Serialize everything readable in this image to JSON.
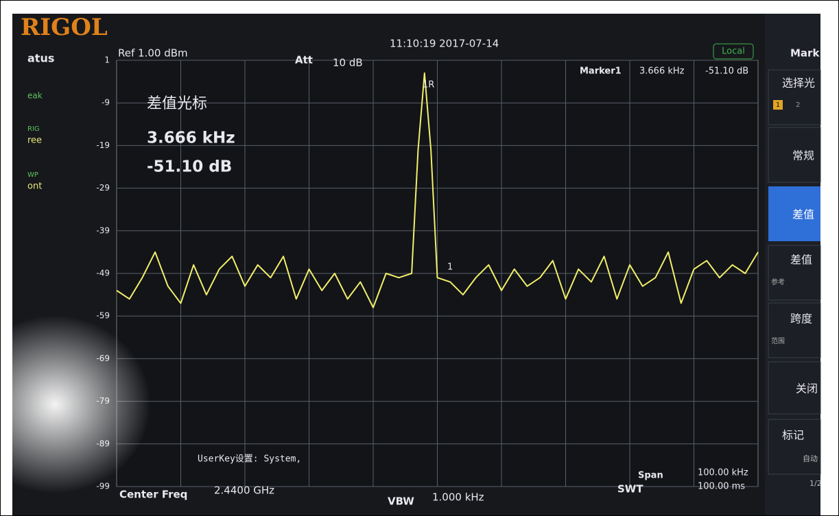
{
  "screen": {
    "logo": "RIGOL",
    "status_title": "atus",
    "status": [
      "eak",
      "RIG",
      "ree",
      "WP",
      "ont"
    ],
    "ref": "Ref 1.00 dBm",
    "att_label": "Att",
    "att_value": "10 dB",
    "timestamp": "11:10:19 2017-07-14",
    "local": "Local",
    "marker_label": "Marker1",
    "marker_freq": "3.666 kHz",
    "marker_level": "-51.10 dB",
    "marker_ref_tag": "1R",
    "marker_tag": "1",
    "overlay_title": "差值光标",
    "overlay_freq": "3.666 kHz",
    "overlay_level": "-51.10 dB",
    "userkey": "UserKey设置:  System,",
    "center_label": "Center Freq",
    "center_value": "2.4400 GHz",
    "vbw_label": "VBW",
    "vbw_value": "1.000 kHz",
    "span_label": "Span",
    "span_value": "100.00 kHz",
    "swt_label": "SWT",
    "swt_value": "100.00 ms",
    "menu": [
      "Mark",
      "选择光",
      "1",
      "2",
      "常规",
      "差值",
      "差值",
      "参考",
      "跨度",
      "范围",
      "关闭",
      "标记",
      "自动",
      "1/2"
    ]
  },
  "chart_data": {
    "type": "line",
    "x": [
      -50,
      -48,
      -46,
      -44,
      -42,
      -40,
      -38,
      -36,
      -34,
      -32,
      -30,
      -28,
      -26,
      -24,
      -22,
      -20,
      -18,
      -16,
      -14,
      -12,
      -10,
      -8,
      -6,
      -4,
      -3,
      -2,
      -1,
      0,
      2,
      4,
      6,
      8,
      10,
      12,
      14,
      16,
      18,
      20,
      22,
      24,
      26,
      28,
      30,
      32,
      34,
      36,
      38,
      40,
      42,
      44,
      46,
      48,
      50
    ],
    "series": [
      {
        "color": "#f2ee6a",
        "values": [
          -53,
          -55,
          -50,
          -44,
          -52,
          -56,
          -47,
          -54,
          -48,
          -45,
          -52,
          -47,
          -50,
          -45,
          -55,
          -48,
          -53,
          -49,
          -55,
          -51,
          -57,
          -49,
          -50,
          -49,
          -20,
          -2,
          -20,
          -50,
          -51,
          -54,
          -50,
          -47,
          -53,
          -48,
          -52,
          -50,
          -46,
          -55,
          -48,
          -51,
          -45,
          -55,
          -47,
          -52,
          -50,
          -44,
          -56,
          -48,
          -46,
          -50,
          -47,
          -49,
          -44
        ]
      }
    ],
    "xlim": [
      -50,
      50
    ],
    "ylim": [
      -99,
      1
    ],
    "yticks": [
      1,
      -9,
      -19,
      -29,
      -39,
      -49,
      -59,
      -69,
      -79,
      -89,
      -99
    ],
    "grid": true
  }
}
